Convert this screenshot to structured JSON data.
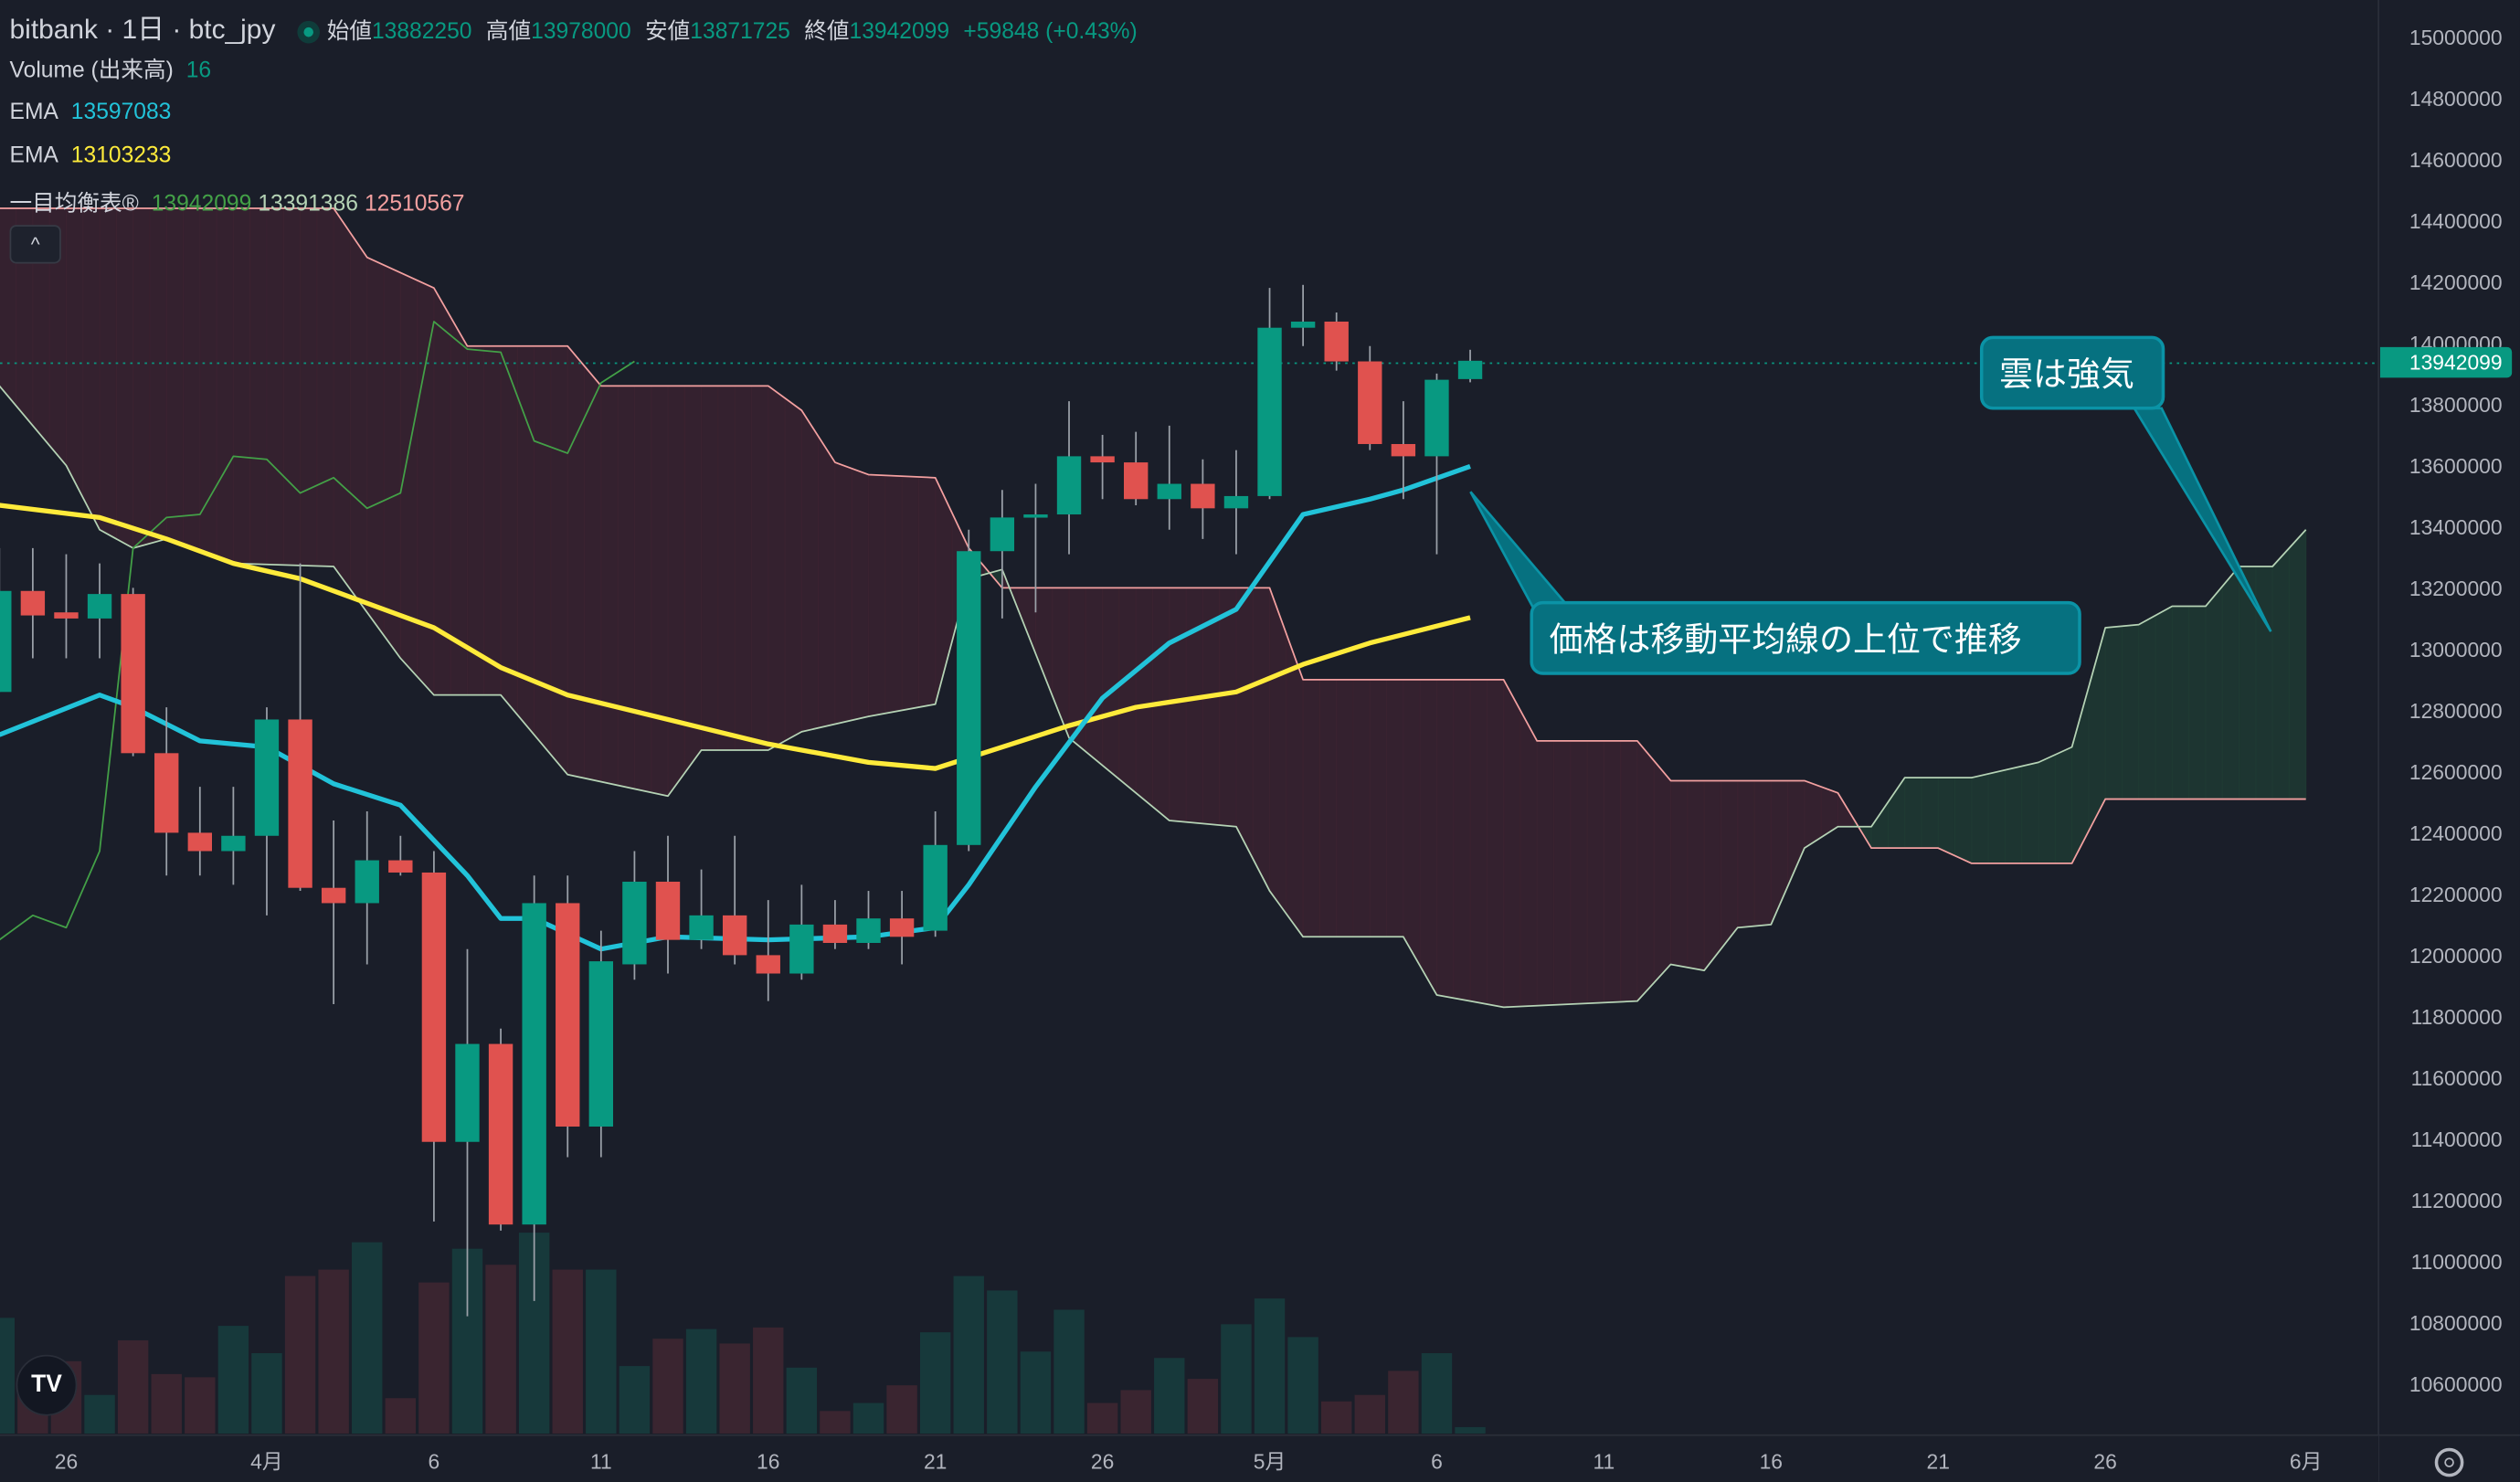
{
  "header": {
    "symbol_title": "bitbank · 1日 · btc_jpy",
    "open_label": "始値",
    "open": "13882250",
    "high_label": "高値",
    "high": "13978000",
    "low_label": "安値",
    "low": "13871725",
    "close_label": "終値",
    "close": "13942099",
    "change": "+59848 (+0.43%)"
  },
  "indicators": {
    "volume_label": "Volume (出来高)",
    "volume_value": "16",
    "ema1_label": "EMA",
    "ema1_value": "13597083",
    "ema2_label": "EMA",
    "ema2_value": "13103233",
    "ichimoku_label": "一目均衡表®",
    "ichimoku_v1": "13942099",
    "ichimoku_v2": "13391386",
    "ichimoku_v3": "12510567",
    "collapse_glyph": "^"
  },
  "last_price_label": "13942099",
  "annotations": {
    "cloud_bullish": "雲は強気",
    "price_above_ma": "価格は移動平均線の上位で推移"
  },
  "logo_text": "TV",
  "colors": {
    "up": "#089981",
    "down": "#e0524f",
    "ema_fast": "#22c3d9",
    "ema_slow": "#ffeb3b",
    "span_a": "#b5d3b5",
    "span_b": "#f3a0a0",
    "lagging": "#43a047",
    "cloud_bear": "#3a2230",
    "cloud_bull": "#1f3a33"
  },
  "chart_data": {
    "type": "candlestick",
    "units": "JPY (candle values in units of 10,000 JPY)",
    "first_day_offset": -8,
    "day_offset_note": "0 = 4月1日",
    "candles": [
      [
        1286,
        1333,
        1286,
        1319
      ],
      [
        1319,
        1333,
        1297,
        1311
      ],
      [
        1312,
        1331,
        1297,
        1310
      ],
      [
        1310,
        1328,
        1297,
        1318
      ],
      [
        1318,
        1320,
        1265,
        1266
      ],
      [
        1266,
        1281,
        1226,
        1240
      ],
      [
        1240,
        1255,
        1226,
        1234
      ],
      [
        1234,
        1255,
        1223,
        1239
      ],
      [
        1239,
        1281,
        1213,
        1277
      ],
      [
        1277,
        1328,
        1221,
        1222
      ],
      [
        1222,
        1244,
        1184,
        1217
      ],
      [
        1217,
        1247,
        1197,
        1231
      ],
      [
        1231,
        1239,
        1226,
        1227
      ],
      [
        1227,
        1234,
        1113,
        1139
      ],
      [
        1139,
        1202,
        1082,
        1171
      ],
      [
        1171,
        1176,
        1110,
        1112
      ],
      [
        1112,
        1226,
        1087,
        1217
      ],
      [
        1217,
        1226,
        1134,
        1144
      ],
      [
        1144,
        1208,
        1134,
        1198
      ],
      [
        1197,
        1234,
        1192,
        1224
      ],
      [
        1224,
        1239,
        1194,
        1205
      ],
      [
        1205,
        1228,
        1202,
        1213
      ],
      [
        1213,
        1239,
        1197,
        1200
      ],
      [
        1200,
        1218,
        1185,
        1194
      ],
      [
        1194,
        1223,
        1192,
        1210
      ],
      [
        1210,
        1218,
        1202,
        1204
      ],
      [
        1204,
        1221,
        1202,
        1212
      ],
      [
        1212,
        1221,
        1197,
        1206
      ],
      [
        1208,
        1247,
        1206,
        1236
      ],
      [
        1236,
        1339,
        1234,
        1332
      ],
      [
        1332,
        1352,
        1310,
        1343
      ],
      [
        1343,
        1354,
        1312,
        1344
      ],
      [
        1344,
        1381,
        1331,
        1363
      ],
      [
        1363,
        1370,
        1349,
        1361
      ],
      [
        1361,
        1371,
        1347,
        1349
      ],
      [
        1349,
        1373,
        1339,
        1354
      ],
      [
        1354,
        1362,
        1336,
        1346
      ],
      [
        1346,
        1365,
        1331,
        1350
      ],
      [
        1350,
        1418,
        1349,
        1405
      ],
      [
        1405,
        1419,
        1399,
        1407
      ],
      [
        1407,
        1410,
        1391,
        1394
      ],
      [
        1394,
        1399,
        1365,
        1367
      ],
      [
        1367,
        1381,
        1349,
        1363
      ],
      [
        1363,
        1390,
        1331,
        1388
      ],
      [
        1388.225,
        1397.8,
        1387.1725,
        1394.2099
      ]
    ],
    "volume": [
      288,
      112,
      180,
      96,
      232,
      148,
      140,
      268,
      200,
      392,
      408,
      476,
      88,
      376,
      460,
      420,
      500,
      408,
      408,
      168,
      236,
      260,
      224,
      264,
      164,
      56,
      76,
      120,
      252,
      392,
      356,
      204,
      308,
      76,
      108,
      188,
      136,
      272,
      336,
      240,
      80,
      96,
      156,
      200,
      16
    ],
    "ema_fast": [
      [
        -8,
        1272
      ],
      [
        -5,
        1285
      ],
      [
        -4,
        1281
      ],
      [
        -2,
        1270
      ],
      [
        0,
        1268
      ],
      [
        2,
        1256
      ],
      [
        4,
        1249
      ],
      [
        6,
        1226
      ],
      [
        7,
        1212
      ],
      [
        8,
        1212
      ],
      [
        10,
        1202
      ],
      [
        12,
        1206
      ],
      [
        15,
        1205
      ],
      [
        18,
        1206
      ],
      [
        20,
        1209
      ],
      [
        21,
        1223
      ],
      [
        23,
        1255
      ],
      [
        25,
        1284
      ],
      [
        27,
        1302
      ],
      [
        29,
        1313
      ],
      [
        31,
        1344
      ],
      [
        33,
        1349
      ],
      [
        34,
        1352
      ],
      [
        36,
        1359.7
      ]
    ],
    "ema_slow": [
      [
        -8,
        1347
      ],
      [
        -5,
        1343
      ],
      [
        -3,
        1336
      ],
      [
        -1,
        1328
      ],
      [
        1,
        1323
      ],
      [
        3,
        1315
      ],
      [
        5,
        1307
      ],
      [
        7,
        1294
      ],
      [
        9,
        1285
      ],
      [
        12,
        1277
      ],
      [
        15,
        1269
      ],
      [
        18,
        1263
      ],
      [
        20,
        1261
      ],
      [
        22,
        1268
      ],
      [
        24,
        1275
      ],
      [
        26,
        1281
      ],
      [
        29,
        1286
      ],
      [
        31,
        1295
      ],
      [
        33,
        1302
      ],
      [
        36,
        1310.3
      ]
    ],
    "span_a": [
      [
        -8,
        1386
      ],
      [
        -6,
        1360
      ],
      [
        -5,
        1339
      ],
      [
        -4,
        1333
      ],
      [
        -3,
        1336
      ],
      [
        -1,
        1328
      ],
      [
        2,
        1327
      ],
      [
        4,
        1297
      ],
      [
        5,
        1285
      ],
      [
        7,
        1285
      ],
      [
        9,
        1259
      ],
      [
        12,
        1252
      ],
      [
        13,
        1267
      ],
      [
        15,
        1267
      ],
      [
        16,
        1273
      ],
      [
        18,
        1278
      ],
      [
        20,
        1282
      ],
      [
        21,
        1323
      ],
      [
        22,
        1326
      ],
      [
        24,
        1271
      ],
      [
        27,
        1244
      ],
      [
        29,
        1242
      ],
      [
        30,
        1221
      ],
      [
        31,
        1206
      ],
      [
        34,
        1206
      ],
      [
        35,
        1187
      ],
      [
        36,
        1185
      ],
      [
        37,
        1183
      ],
      [
        39,
        1184
      ],
      [
        41,
        1185
      ],
      [
        42,
        1197
      ],
      [
        43,
        1195
      ],
      [
        44,
        1209
      ],
      [
        45,
        1210
      ],
      [
        46,
        1235
      ],
      [
        47,
        1242
      ],
      [
        48,
        1242
      ],
      [
        49,
        1258
      ],
      [
        51,
        1258
      ],
      [
        53,
        1263
      ],
      [
        54,
        1268
      ],
      [
        55,
        1307
      ],
      [
        56,
        1308
      ],
      [
        57,
        1314
      ],
      [
        58,
        1314
      ],
      [
        59,
        1327
      ],
      [
        60,
        1327
      ],
      [
        61,
        1339
      ]
    ],
    "span_b": [
      [
        -8,
        1444
      ],
      [
        2,
        1444
      ],
      [
        3,
        1428
      ],
      [
        5,
        1418
      ],
      [
        6,
        1399
      ],
      [
        9,
        1399
      ],
      [
        10,
        1386
      ],
      [
        15,
        1386
      ],
      [
        16,
        1378
      ],
      [
        17,
        1361
      ],
      [
        18,
        1357
      ],
      [
        20,
        1356
      ],
      [
        21,
        1333
      ],
      [
        22,
        1320
      ],
      [
        30,
        1320
      ],
      [
        31,
        1290
      ],
      [
        37,
        1290
      ],
      [
        38,
        1270
      ],
      [
        41,
        1270
      ],
      [
        42,
        1257
      ],
      [
        46,
        1257
      ],
      [
        47,
        1253
      ],
      [
        48,
        1235
      ],
      [
        50,
        1235
      ],
      [
        51,
        1230
      ],
      [
        54,
        1230
      ],
      [
        55,
        1251
      ],
      [
        61,
        1251
      ]
    ],
    "lagging": [
      [
        -8,
        1205
      ],
      [
        -7,
        1213
      ],
      [
        -6,
        1209
      ],
      [
        -5,
        1234
      ],
      [
        -4,
        1333
      ],
      [
        -3,
        1343
      ],
      [
        -2,
        1344
      ],
      [
        -1,
        1363
      ],
      [
        0,
        1362
      ],
      [
        1,
        1351
      ],
      [
        2,
        1356
      ],
      [
        3,
        1346
      ],
      [
        4,
        1351
      ],
      [
        5,
        1407
      ],
      [
        6,
        1398
      ],
      [
        7,
        1397
      ],
      [
        8,
        1368
      ],
      [
        9,
        1364
      ],
      [
        10,
        1387
      ],
      [
        11,
        1394
      ]
    ],
    "y_ticks": [
      "15000000",
      "14800000",
      "14600000",
      "14400000",
      "14200000",
      "14000000",
      "13800000",
      "13600000",
      "13400000",
      "13200000",
      "13000000",
      "12800000",
      "12600000",
      "12400000",
      "12200000",
      "12000000",
      "11800000",
      "11600000",
      "11400000",
      "11200000",
      "11000000",
      "10800000",
      "10600000"
    ],
    "x_ticks": [
      {
        "label": "26",
        "day": -6
      },
      {
        "label": "4月",
        "day": 0
      },
      {
        "label": "6",
        "day": 5
      },
      {
        "label": "11",
        "day": 10
      },
      {
        "label": "16",
        "day": 15
      },
      {
        "label": "21",
        "day": 20
      },
      {
        "label": "26",
        "day": 25
      },
      {
        "label": "5月",
        "day": 30
      },
      {
        "label": "6",
        "day": 35
      },
      {
        "label": "11",
        "day": 40
      },
      {
        "label": "16",
        "day": 45
      },
      {
        "label": "21",
        "day": 50
      },
      {
        "label": "26",
        "day": 55
      },
      {
        "label": "6月",
        "day": 61
      }
    ],
    "ylim": [
      10500000,
      15100000
    ]
  }
}
